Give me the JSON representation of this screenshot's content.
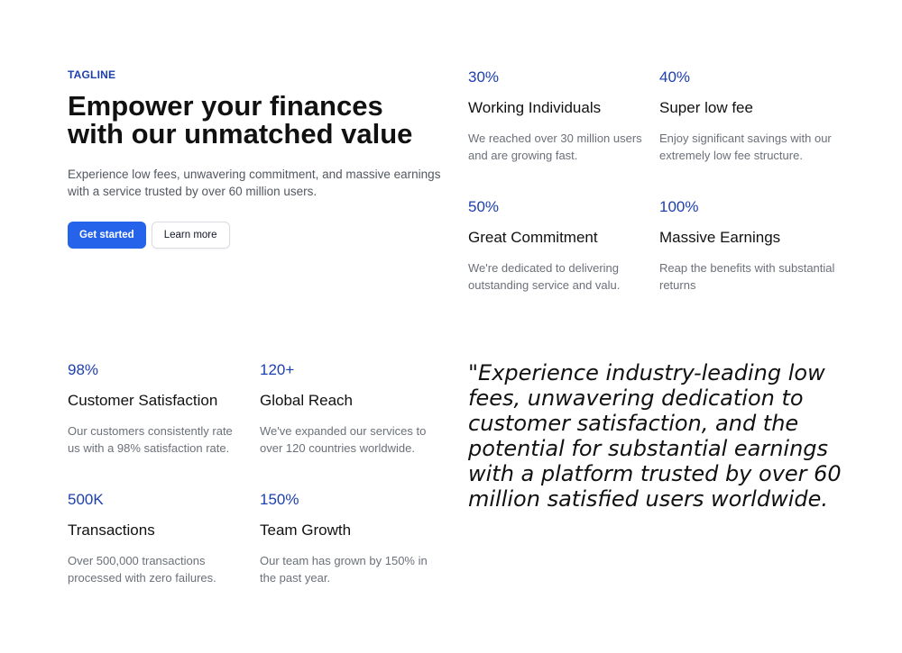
{
  "hero": {
    "tagline": "TAGLINE",
    "title_line1": "Empower your finances",
    "title_line2": "with our unmatched value",
    "description": "Experience low fees, unwavering commitment, and massive earnings with a service trusted by over 60 million users.",
    "primary_button": "Get started",
    "secondary_button": "Learn more"
  },
  "top_stats": [
    {
      "value": "30%",
      "title": "Working Individuals",
      "description": "We reached over 30 million users and are growing fast."
    },
    {
      "value": "40%",
      "title": "Super low fee",
      "description": "Enjoy significant savings with our extremely low fee structure."
    },
    {
      "value": "50%",
      "title": "Great Commitment",
      "description": "We're dedicated to delivering outstanding service and valu."
    },
    {
      "value": "100%",
      "title": "Massive Earnings",
      "description": "Reap the benefits with substantial returns"
    }
  ],
  "bottom_stats": [
    {
      "value": "98%",
      "title": "Customer Satisfaction",
      "description": "Our customers consistently rate us with a 98% satisfaction rate."
    },
    {
      "value": "120+",
      "title": "Global Reach",
      "description": "We've expanded our services to over 120 countries worldwide."
    },
    {
      "value": "500K",
      "title": "Transactions",
      "description": "Over 500,000 transactions processed with zero failures."
    },
    {
      "value": "150%",
      "title": "Team Growth",
      "description": "Our team has grown by 150% in the past year."
    }
  ],
  "quote": {
    "text": "\"Experience industry-leading low fees, unwavering dedication to customer satisfaction, and the potential for substantial earnings with a platform trusted by over 60 million satisfied users worldwide."
  },
  "colors": {
    "accent": "#1e40af",
    "primary_button": "#2563eb",
    "muted_text": "#6b7079"
  }
}
